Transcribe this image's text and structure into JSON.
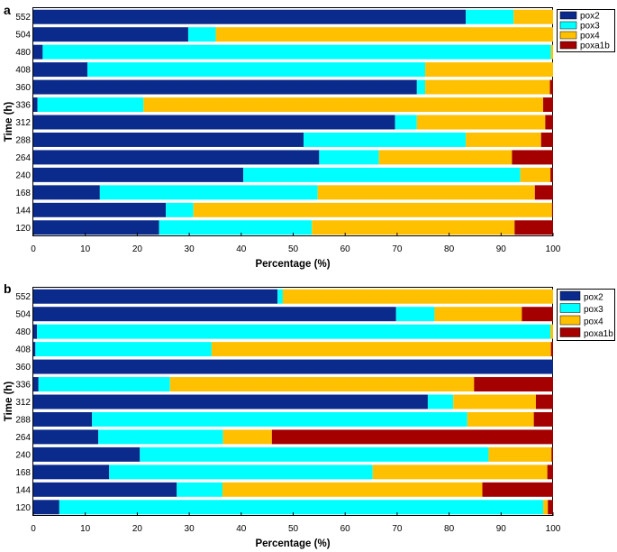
{
  "chart_data": [
    {
      "type": "bar",
      "orientation": "horizontal",
      "stacked": true,
      "panel_label": "a",
      "xlabel": "Percentage (%)",
      "ylabel": "Time (h)",
      "xlim": [
        0,
        100
      ],
      "xticks": [
        "0",
        "10",
        "20",
        "30",
        "40",
        "50",
        "60",
        "70",
        "80",
        "90",
        "100"
      ],
      "categories": [
        "552",
        "504",
        "480",
        "408",
        "360",
        "336",
        "312",
        "288",
        "264",
        "240",
        "168",
        "144",
        "120"
      ],
      "legend_position": "top-right",
      "series": [
        {
          "name": "pox2",
          "color": "#0a2a8c",
          "values": [
            83.2,
            29.8,
            1.8,
            10.4,
            73.8,
            0.8,
            69.6,
            52.0,
            55.0,
            40.4,
            12.8,
            25.5,
            24.2
          ]
        },
        {
          "name": "pox3",
          "color": "#00ffff",
          "values": [
            9.2,
            5.3,
            97.8,
            65.0,
            1.6,
            20.4,
            4.2,
            31.2,
            11.5,
            53.3,
            41.9,
            5.3,
            29.4
          ]
        },
        {
          "name": "pox4",
          "color": "#ffc000",
          "values": [
            7.6,
            64.9,
            0.4,
            24.6,
            24.0,
            76.9,
            24.7,
            14.5,
            25.6,
            5.8,
            41.8,
            69.0,
            39.0
          ]
        },
        {
          "name": "poxa1b",
          "color": "#a50000",
          "values": [
            0.0,
            0.0,
            0.0,
            0.0,
            0.6,
            1.9,
            1.5,
            2.3,
            7.9,
            0.5,
            3.5,
            0.2,
            7.4
          ]
        }
      ]
    },
    {
      "type": "bar",
      "orientation": "horizontal",
      "stacked": true,
      "panel_label": "b",
      "xlabel": "Percentage (%)",
      "ylabel": "Time (h)",
      "xlim": [
        0,
        100
      ],
      "xticks": [
        "0",
        "10",
        "20",
        "30",
        "40",
        "50",
        "60",
        "70",
        "80",
        "90",
        "100"
      ],
      "categories": [
        "552",
        "504",
        "480",
        "408",
        "360",
        "336",
        "312",
        "288",
        "264",
        "240",
        "168",
        "144",
        "120"
      ],
      "legend_position": "top-right",
      "series": [
        {
          "name": "pox2",
          "color": "#0a2a8c",
          "values": [
            47.0,
            69.8,
            0.7,
            0.4,
            100.0,
            1.0,
            75.9,
            11.3,
            12.5,
            20.5,
            14.6,
            27.6,
            5.0
          ]
        },
        {
          "name": "pox3",
          "color": "#00ffff",
          "values": [
            1.0,
            7.4,
            98.8,
            33.9,
            0.0,
            25.3,
            4.9,
            72.2,
            24.0,
            67.1,
            50.7,
            8.8,
            93.1
          ]
        },
        {
          "name": "pox4",
          "color": "#ffc000",
          "values": [
            52.0,
            16.8,
            0.5,
            65.3,
            0.0,
            58.5,
            15.9,
            12.8,
            9.4,
            12.1,
            33.6,
            50.0,
            0.9
          ]
        },
        {
          "name": "poxa1b",
          "color": "#a50000",
          "values": [
            0.0,
            6.0,
            0.0,
            0.4,
            0.0,
            15.2,
            3.3,
            3.7,
            54.1,
            0.3,
            1.1,
            13.6,
            1.0
          ]
        }
      ]
    }
  ]
}
